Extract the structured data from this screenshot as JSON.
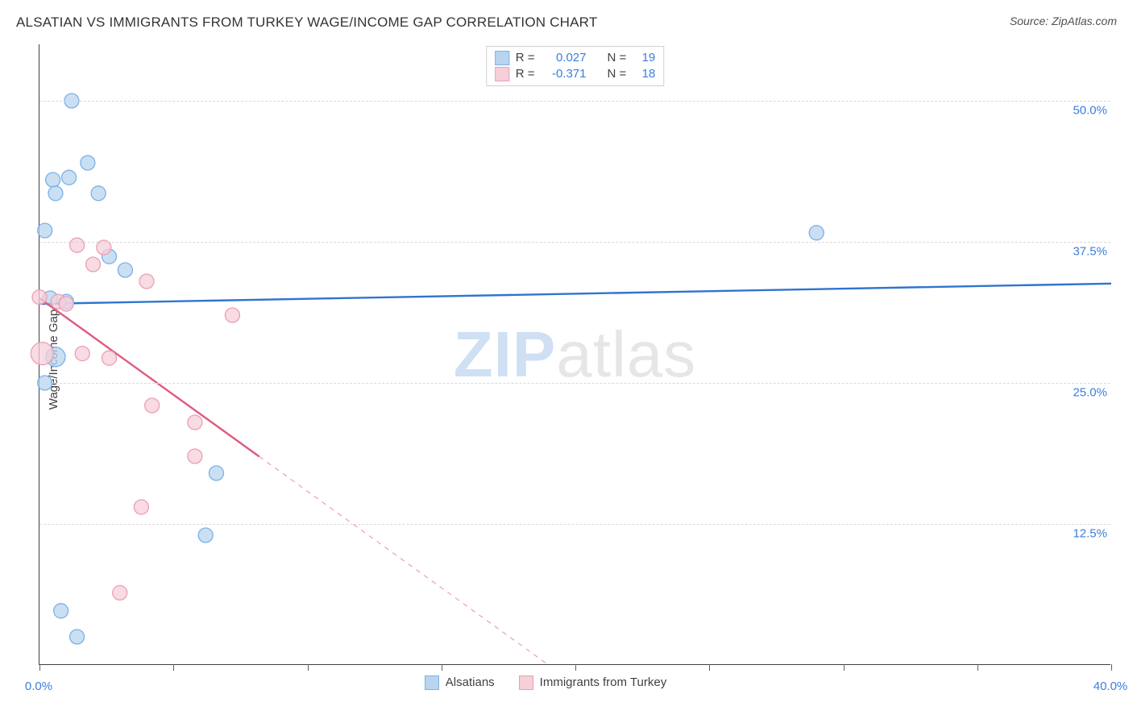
{
  "title": "ALSATIAN VS IMMIGRANTS FROM TURKEY WAGE/INCOME GAP CORRELATION CHART",
  "source_label": "Source: ZipAtlas.com",
  "ylabel": "Wage/Income Gap",
  "watermark": {
    "part1": "ZIP",
    "part2": "atlas"
  },
  "chart": {
    "type": "scatter",
    "xlim": [
      0,
      40
    ],
    "ylim": [
      0,
      55
    ],
    "xtick_positions": [
      0,
      5,
      10,
      15,
      20,
      25,
      30,
      35,
      40
    ],
    "xtick_labels": {
      "0": "0.0%",
      "40": "40.0%"
    },
    "ygrid": [
      12.5,
      25.0,
      37.5,
      50.0
    ],
    "ytick_labels": [
      "12.5%",
      "25.0%",
      "37.5%",
      "50.0%"
    ],
    "background_color": "#ffffff",
    "grid_color": "#d8d8d8",
    "axis_color": "#404040",
    "series": [
      {
        "name": "Alsatians",
        "color_fill": "#b9d4ef",
        "color_stroke": "#7ab1e8",
        "line_color": "#2f74d0",
        "line_width": 2.4,
        "marker_r": 9,
        "R": "0.027",
        "N": "19",
        "points": [
          {
            "x": 1.2,
            "y": 50.0
          },
          {
            "x": 1.8,
            "y": 44.5
          },
          {
            "x": 0.5,
            "y": 43.0
          },
          {
            "x": 1.1,
            "y": 43.2
          },
          {
            "x": 0.6,
            "y": 41.8
          },
          {
            "x": 2.2,
            "y": 41.8
          },
          {
            "x": 0.2,
            "y": 38.5
          },
          {
            "x": 29.0,
            "y": 38.3
          },
          {
            "x": 2.6,
            "y": 36.2
          },
          {
            "x": 3.2,
            "y": 35.0
          },
          {
            "x": 0.4,
            "y": 32.5
          },
          {
            "x": 1.0,
            "y": 32.2
          },
          {
            "x": 0.6,
            "y": 27.3,
            "r": 12
          },
          {
            "x": 0.2,
            "y": 25.0
          },
          {
            "x": 6.6,
            "y": 17.0
          },
          {
            "x": 6.2,
            "y": 11.5
          },
          {
            "x": 0.8,
            "y": 4.8
          },
          {
            "x": 1.4,
            "y": 2.5
          }
        ],
        "trend": {
          "x1": 0,
          "y1": 32.0,
          "x2": 40,
          "y2": 33.8
        }
      },
      {
        "name": "Immigrants from Turkey",
        "color_fill": "#f6cfd9",
        "color_stroke": "#eb9fb3",
        "line_color": "#e05a7d",
        "line_width": 2.4,
        "marker_r": 9,
        "R": "-0.371",
        "N": "18",
        "points": [
          {
            "x": 1.4,
            "y": 37.2
          },
          {
            "x": 2.4,
            "y": 37.0
          },
          {
            "x": 2.0,
            "y": 35.5
          },
          {
            "x": 4.0,
            "y": 34.0
          },
          {
            "x": 0.0,
            "y": 32.6
          },
          {
            "x": 0.7,
            "y": 32.2
          },
          {
            "x": 1.0,
            "y": 32.0
          },
          {
            "x": 7.2,
            "y": 31.0
          },
          {
            "x": 0.1,
            "y": 27.6,
            "r": 14
          },
          {
            "x": 1.6,
            "y": 27.6
          },
          {
            "x": 2.6,
            "y": 27.2
          },
          {
            "x": 4.2,
            "y": 23.0
          },
          {
            "x": 5.8,
            "y": 21.5
          },
          {
            "x": 5.8,
            "y": 18.5
          },
          {
            "x": 3.8,
            "y": 14.0
          },
          {
            "x": 3.0,
            "y": 6.4
          }
        ],
        "trend": {
          "x1": 0,
          "y1": 32.5,
          "x2": 19,
          "y2": 0
        },
        "trend_solid_until_x": 8.2
      }
    ]
  },
  "stats_legend": {
    "r_label": "R =",
    "n_label": "N ="
  },
  "bottom_legend": {
    "items": [
      {
        "label": "Alsatians",
        "fill": "#b9d4ef",
        "stroke": "#7ab1e8"
      },
      {
        "label": "Immigrants from Turkey",
        "fill": "#f6cfd9",
        "stroke": "#eb9fb3"
      }
    ]
  }
}
